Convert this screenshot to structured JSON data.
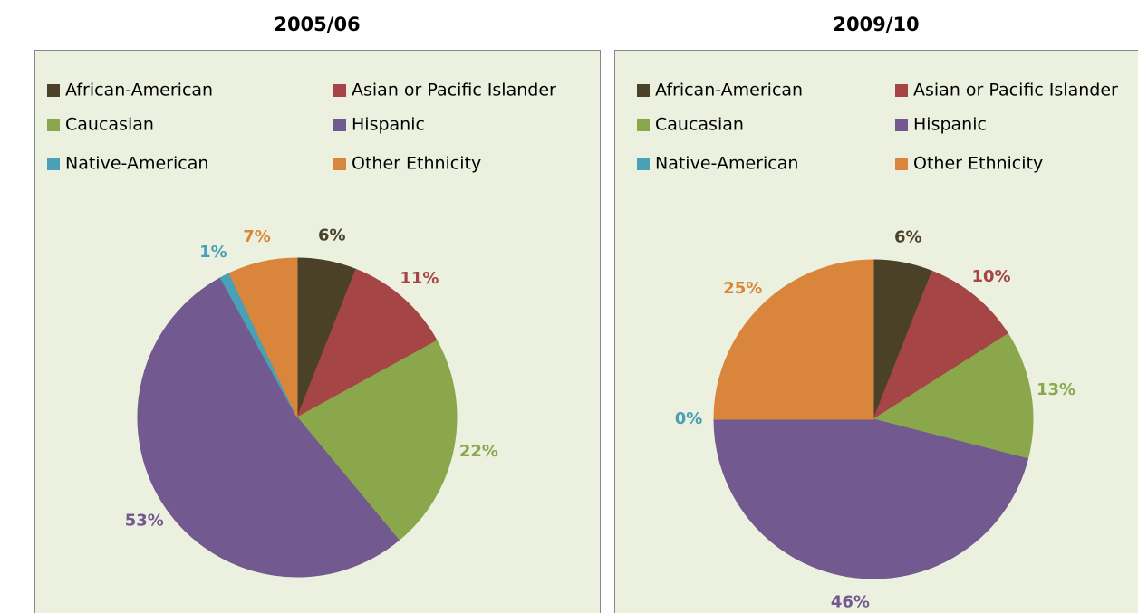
{
  "chart_data": [
    {
      "type": "pie",
      "title": "2005/06",
      "categories": [
        "African-American",
        "Asian or Pacific Islander",
        "Caucasian",
        "Hispanic",
        "Native-American",
        "Other Ethnicity"
      ],
      "values": [
        6,
        11,
        22,
        53,
        1,
        7
      ],
      "value_labels": [
        "6%",
        "11%",
        "22%",
        "53%",
        "1%",
        "7%"
      ],
      "colors": [
        "#4b4129",
        "#a54545",
        "#8aa74b",
        "#725990",
        "#4aa0b5",
        "#d9853b"
      ]
    },
    {
      "type": "pie",
      "title": "2009/10",
      "categories": [
        "African-American",
        "Asian or Pacific Islander",
        "Caucasian",
        "Hispanic",
        "Native-American",
        "Other Ethnicity"
      ],
      "values": [
        6,
        10,
        13,
        46,
        0,
        25
      ],
      "value_labels": [
        "6%",
        "10%",
        "13%",
        "46%",
        "0%",
        "25%"
      ],
      "colors": [
        "#4b4129",
        "#a54545",
        "#8aa74b",
        "#725990",
        "#4aa0b5",
        "#d9853b"
      ]
    }
  ]
}
